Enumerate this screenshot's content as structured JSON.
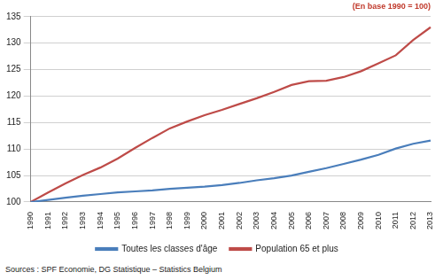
{
  "chart_data": {
    "type": "line",
    "subtitle": "(En base 1990 = 100)",
    "annotations": [
      "Sources : SPF Economie, DG Statistique – Statistics Belgium"
    ],
    "categories": [
      "1990",
      "1991",
      "1992",
      "1993",
      "1994",
      "1995",
      "1996",
      "1997",
      "1998",
      "1999",
      "2000",
      "2001",
      "2002",
      "2003",
      "2004",
      "2005",
      "2006",
      "2007",
      "2008",
      "2009",
      "2010",
      "2011",
      "2012",
      "2013"
    ],
    "series": [
      {
        "name": "Toutes les classes d'âge",
        "color": "#4a7ebb",
        "values": [
          100,
          100.4,
          100.8,
          101.2,
          101.5,
          101.8,
          102.0,
          102.2,
          102.5,
          102.7,
          102.9,
          103.2,
          103.6,
          104.1,
          104.5,
          105.0,
          105.7,
          106.4,
          107.2,
          108.0,
          108.9,
          110.1,
          111.0,
          111.6
        ]
      },
      {
        "name": "Population 65 et plus",
        "color": "#be4b48",
        "values": [
          100,
          101.8,
          103.5,
          105.1,
          106.5,
          108.2,
          110.2,
          112.1,
          113.9,
          115.2,
          116.4,
          117.4,
          118.5,
          119.6,
          120.8,
          122.1,
          122.8,
          122.9,
          123.6,
          124.7,
          126.2,
          127.7,
          130.6,
          133.0
        ]
      }
    ],
    "ylim": [
      100,
      135
    ],
    "yticks": [
      100,
      105,
      110,
      115,
      120,
      125,
      130,
      135
    ],
    "grid": true,
    "legend": "bottom"
  }
}
